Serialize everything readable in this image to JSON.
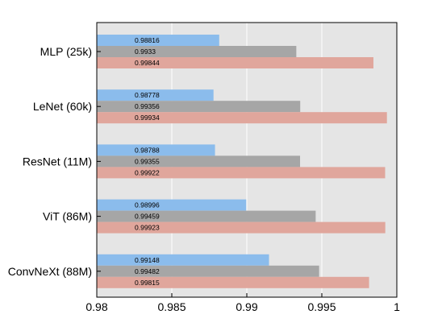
{
  "chart_data": {
    "type": "bar",
    "orientation": "horizontal",
    "categories": [
      "MLP (25k)",
      "LeNet (60k)",
      "ResNet (11M)",
      "ViT (86M)",
      "ConvNeXt (88M)"
    ],
    "series": [
      {
        "color": "#8bbcec",
        "values": [
          0.98816,
          0.98778,
          0.98788,
          0.98996,
          0.99148
        ],
        "labels": [
          "0.98816",
          "0.98778",
          "0.98788",
          "0.98996",
          "0.99148"
        ]
      },
      {
        "color": "#a6a6a6",
        "values": [
          0.9933,
          0.99356,
          0.99355,
          0.99459,
          0.99482
        ],
        "labels": [
          "0.9933",
          "0.99356",
          "0.99355",
          "0.99459",
          "0.99482"
        ]
      },
      {
        "color": "#e0a69c",
        "values": [
          0.99844,
          0.99934,
          0.99922,
          0.99923,
          0.99815
        ],
        "labels": [
          "0.99844",
          "0.99934",
          "0.99922",
          "0.99923",
          "0.99815"
        ]
      }
    ],
    "xlim": [
      0.98,
      1.0
    ],
    "xticks": [
      0.98,
      0.985,
      0.99,
      0.995,
      1.0
    ],
    "xtick_labels": [
      "0.98",
      "0.985",
      "0.99",
      "0.995",
      "1"
    ],
    "grid": true,
    "background": "#e5e5e5",
    "title": "",
    "xlabel": "",
    "ylabel": ""
  }
}
